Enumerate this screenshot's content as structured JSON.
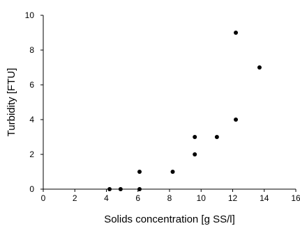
{
  "chart_data": {
    "type": "scatter",
    "xlabel": "Solids concentration [g SS/l]",
    "ylabel": "Turbidity [FTU]",
    "xlim": [
      0,
      16
    ],
    "ylim": [
      0,
      10
    ],
    "xticks": [
      0,
      2,
      4,
      6,
      8,
      10,
      12,
      14,
      16
    ],
    "yticks": [
      0,
      2,
      4,
      6,
      8,
      10
    ],
    "xtick_labels": [
      "0",
      "2",
      "4",
      "6",
      "8",
      "10",
      "12",
      "14",
      "16"
    ],
    "ytick_labels": [
      "0",
      "2",
      "4",
      "6",
      "8",
      "10"
    ],
    "grid": false,
    "legend": "none",
    "marker_color": "#000000",
    "points": [
      {
        "x": 4.2,
        "y": 0
      },
      {
        "x": 4.9,
        "y": 0
      },
      {
        "x": 6.1,
        "y": 0
      },
      {
        "x": 6.1,
        "y": 1
      },
      {
        "x": 8.2,
        "y": 1
      },
      {
        "x": 9.6,
        "y": 2
      },
      {
        "x": 9.6,
        "y": 3
      },
      {
        "x": 11.0,
        "y": 3
      },
      {
        "x": 12.2,
        "y": 4
      },
      {
        "x": 12.2,
        "y": 9
      },
      {
        "x": 13.7,
        "y": 7
      }
    ]
  }
}
